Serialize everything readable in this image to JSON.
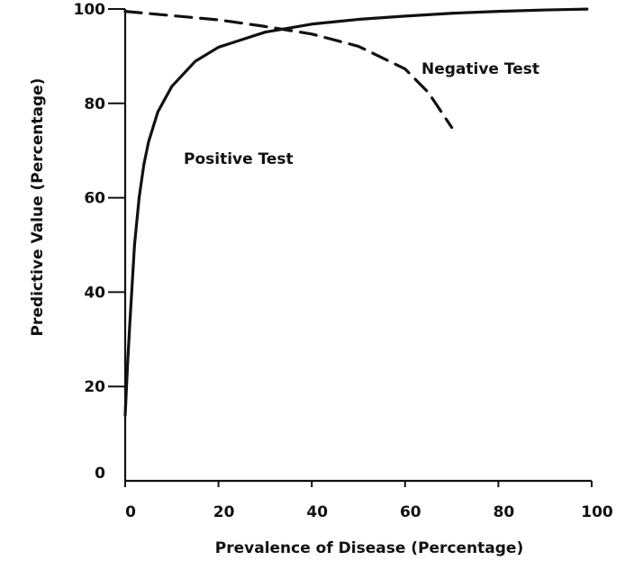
{
  "chart_data": {
    "type": "line",
    "title": "",
    "xlabel": "Prevalence of Disease (Percentage)",
    "ylabel": "Predictive Value (Percentage)",
    "xlim": [
      0,
      100
    ],
    "ylim": [
      0,
      100
    ],
    "x_ticks": [
      "0",
      "20",
      "40",
      "60",
      "80",
      "100"
    ],
    "y_ticks": [
      "0",
      "20",
      "40",
      "60",
      "80",
      "100"
    ],
    "grid": false,
    "legend": "none",
    "series": [
      {
        "name": "Positive Test",
        "style": "solid",
        "color": "#111111",
        "x": [
          0,
          0.5,
          1,
          2,
          3,
          4,
          5,
          7,
          10,
          15,
          20,
          30,
          40,
          50,
          60,
          70,
          80,
          90,
          99
        ],
        "y": [
          13.9,
          24.5,
          33.4,
          50.0,
          60.1,
          67.0,
          71.8,
          78.2,
          83.6,
          88.9,
          91.9,
          95.1,
          96.8,
          97.8,
          98.5,
          99.1,
          99.5,
          99.8,
          99.98
        ]
      },
      {
        "name": "Negative Test",
        "style": "dashed",
        "color": "#111111",
        "x": [
          0,
          10,
          20,
          30,
          40,
          50,
          60,
          65,
          70
        ],
        "y": [
          99.5,
          98.6,
          97.7,
          96.3,
          94.7,
          92.1,
          87.3,
          82.3,
          74.9
        ]
      }
    ]
  }
}
